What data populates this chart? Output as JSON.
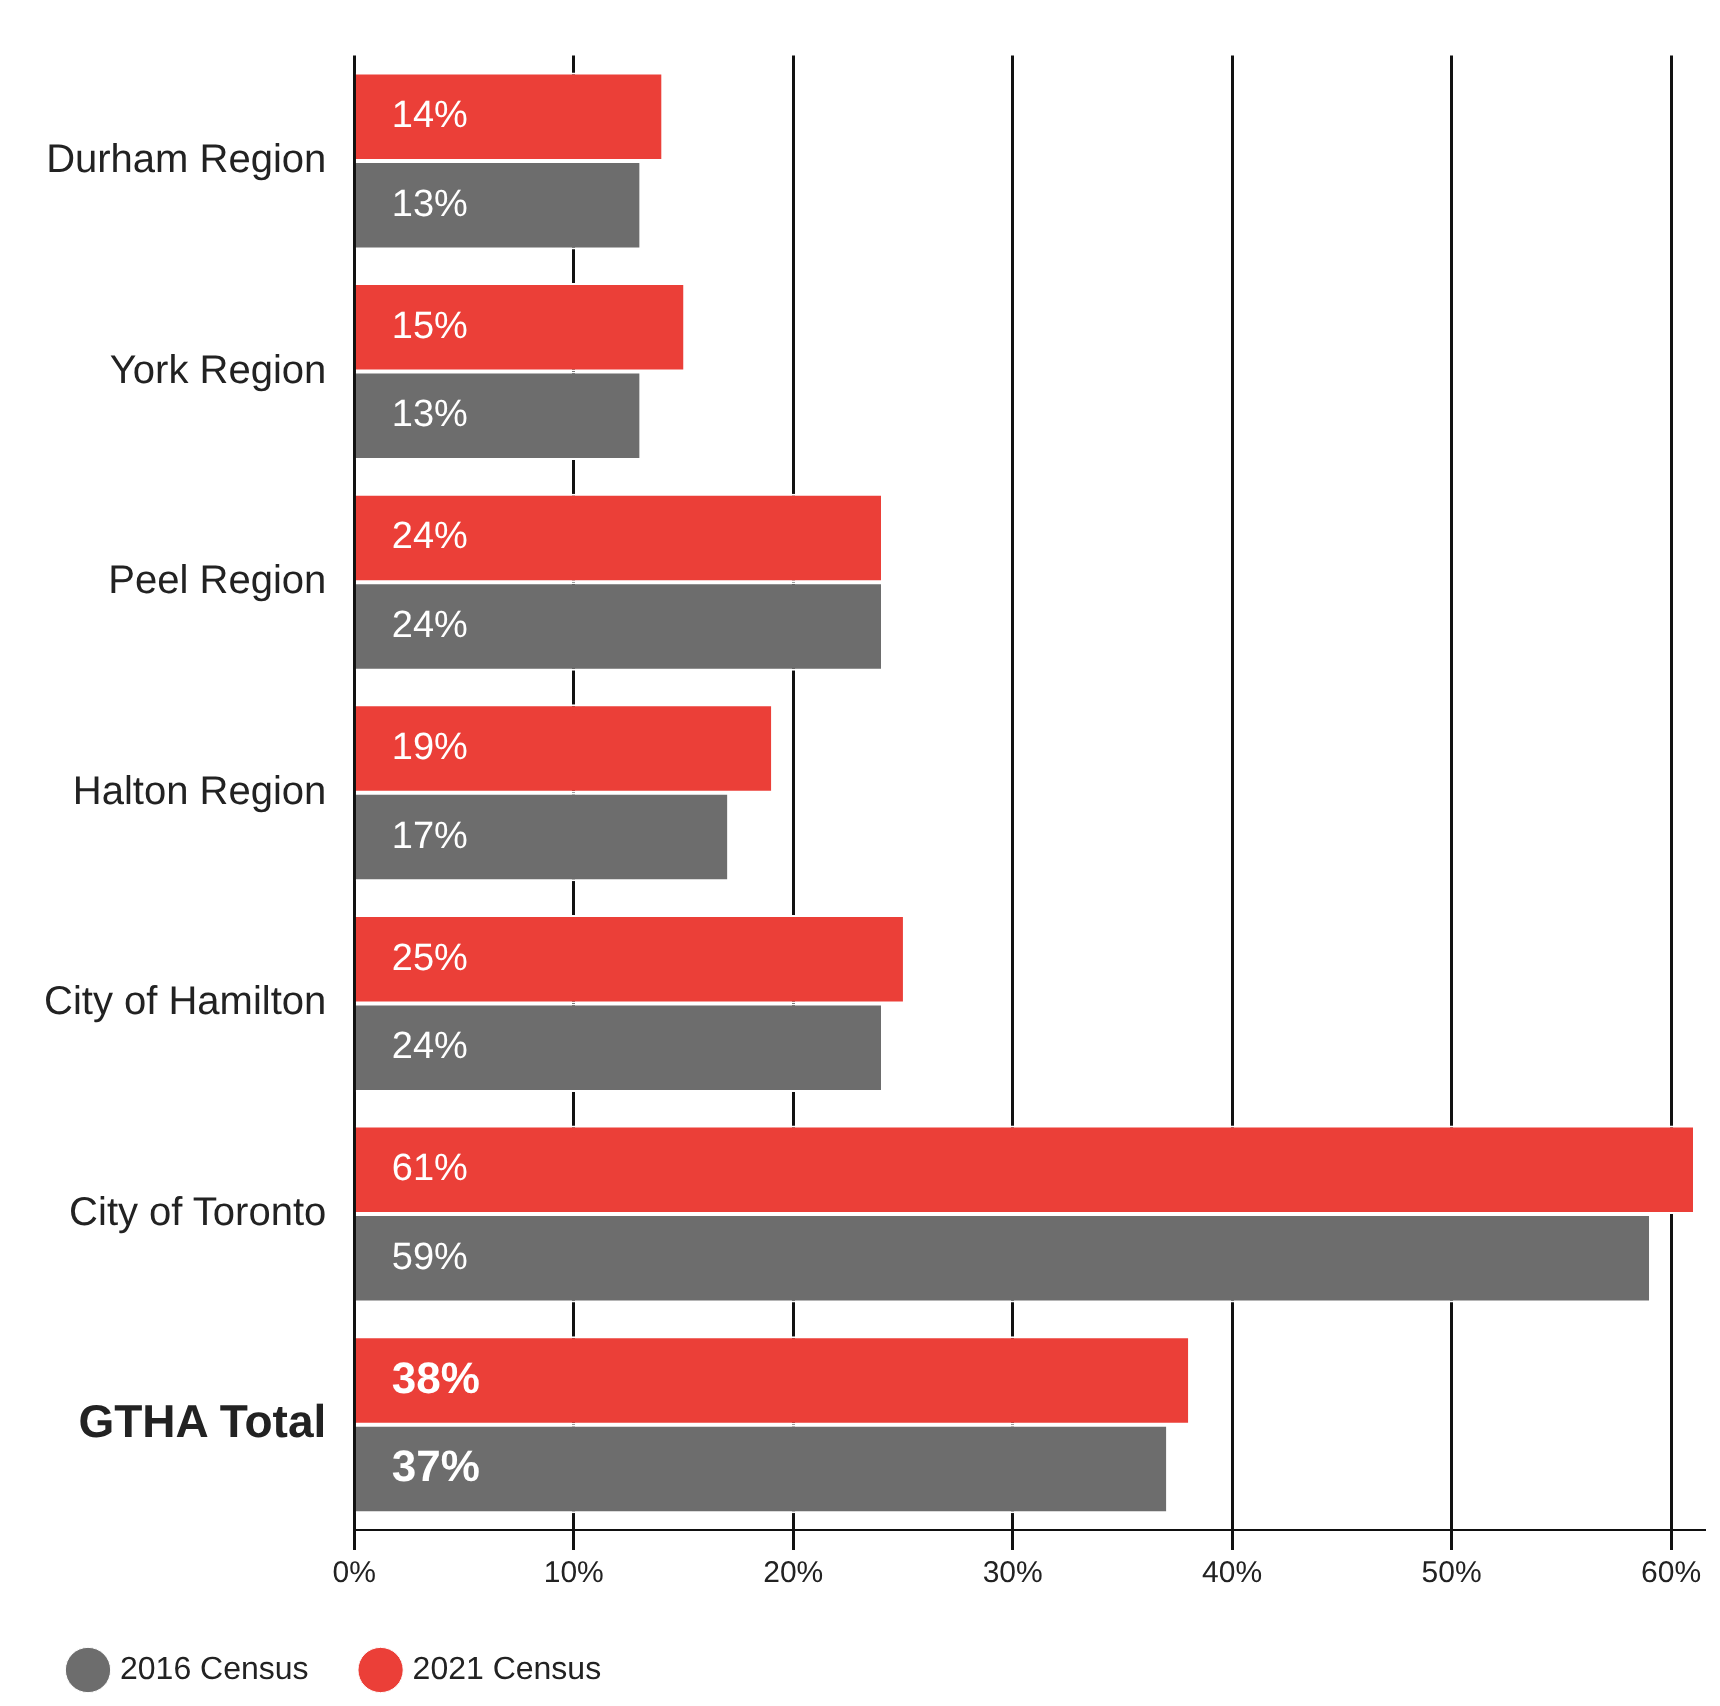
{
  "chart_data": {
    "type": "bar",
    "orientation": "horizontal",
    "categories": [
      "Durham Region",
      "York Region",
      "Peel Region",
      "Halton Region",
      "City of Hamilton",
      "City of Toronto",
      "GTHA Total"
    ],
    "series": [
      {
        "name": "2021 Census",
        "color": "#eb3f38",
        "values": [
          14,
          15,
          24,
          19,
          25,
          61,
          38
        ],
        "value_labels": [
          "14%",
          "15%",
          "24%",
          "19%",
          "25%",
          "61%",
          "38%"
        ]
      },
      {
        "name": "2016 Census",
        "color": "#6d6d6d",
        "values": [
          13,
          13,
          24,
          17,
          24,
          59,
          37
        ],
        "value_labels": [
          "13%",
          "13%",
          "24%",
          "17%",
          "24%",
          "59%",
          "37%"
        ]
      }
    ],
    "xlim": [
      0,
      61.5
    ],
    "xticks": [
      {
        "value": 0,
        "label": "0%"
      },
      {
        "value": 10,
        "label": "10%"
      },
      {
        "value": 20,
        "label": "20%"
      },
      {
        "value": 30,
        "label": "30%"
      },
      {
        "value": 40,
        "label": "40%"
      },
      {
        "value": 50,
        "label": "50%"
      },
      {
        "value": 60,
        "label": "60%"
      }
    ],
    "grid": "x",
    "legend": "bottom"
  }
}
